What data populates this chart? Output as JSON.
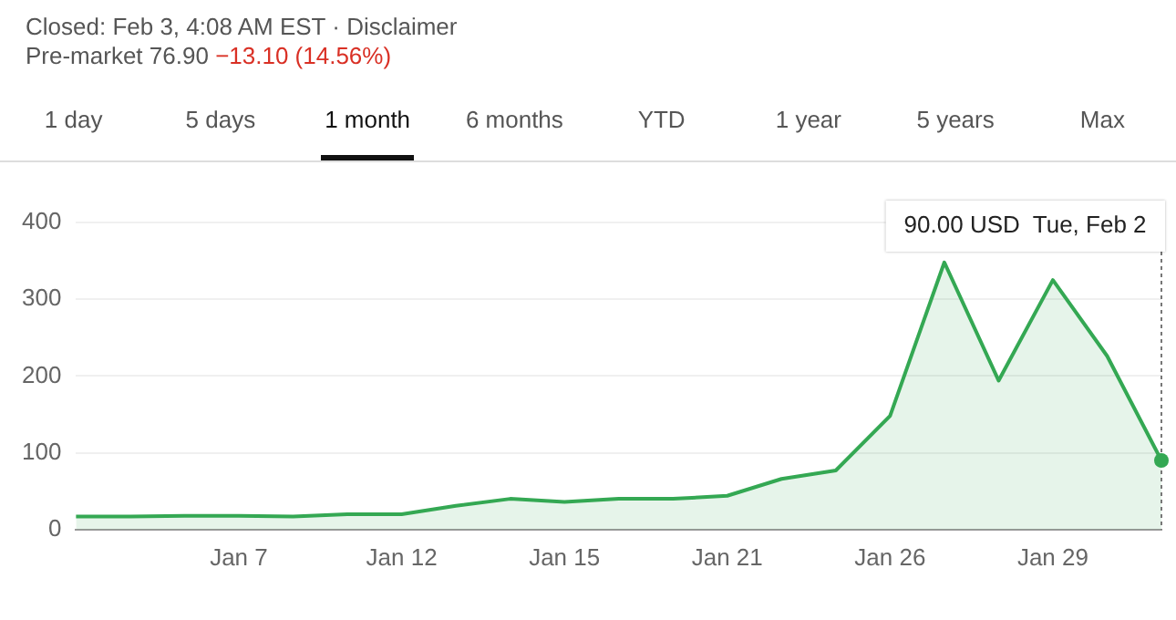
{
  "chart_data": {
    "type": "area",
    "subtitle": "Closed: Feb 3, 4:08 AM EST · Disclaimer",
    "annotations": [
      "Pre-market 76.90",
      "−13.10 (14.56%)",
      "1 day",
      "5 days",
      "1 month",
      "6 months",
      "YTD",
      "1 year",
      "5 years",
      "Max",
      "90.00 USD  Tue, Feb 2"
    ],
    "categories": [
      null,
      null,
      null,
      "Jan 7",
      null,
      null,
      "Jan 12",
      null,
      null,
      "Jan 15",
      null,
      null,
      "Jan 21",
      null,
      null,
      "Jan 26",
      null,
      null,
      "Jan 29",
      null,
      null
    ],
    "series": [
      {
        "color": "#34a853",
        "values": [
          17,
          17,
          18,
          18,
          17,
          20,
          20,
          31,
          40,
          36,
          40,
          40,
          44,
          66,
          77,
          148,
          348,
          194,
          325,
          226,
          90
        ]
      }
    ],
    "ylim": [
      0,
      400
    ],
    "yticks": [
      0,
      100,
      200,
      300,
      400
    ],
    "grid": "y",
    "legend": false,
    "marker": "none",
    "line_style": "solid"
  }
}
